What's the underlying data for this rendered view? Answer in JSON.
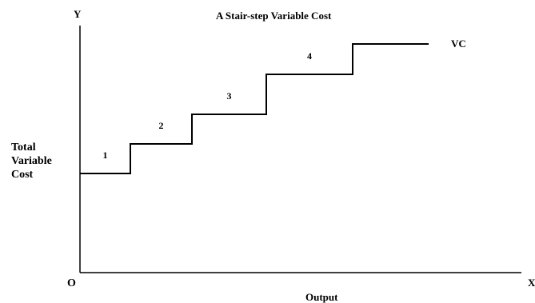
{
  "chart_data": {
    "type": "line",
    "title": "A Stair-step Variable Cost",
    "xlabel": "Output",
    "ylabel": [
      "Total",
      "Variable",
      "Cost"
    ],
    "x_axis_symbol": "X",
    "y_axis_symbol": "Y",
    "origin_label": "O",
    "series": [
      {
        "name": "VC",
        "steps": [
          {
            "label": "1",
            "x_start": 0,
            "x_end": 1,
            "y": 1
          },
          {
            "label": "2",
            "x_start": 1,
            "x_end": 2,
            "y": 2
          },
          {
            "label": "3",
            "x_start": 2,
            "x_end": 3,
            "y": 3
          },
          {
            "label": "4",
            "x_start": 3,
            "x_end": 4,
            "y": 4
          },
          {
            "label": "",
            "x_start": 4,
            "x_end": 5,
            "y": 5
          }
        ]
      }
    ],
    "grid": false,
    "legend": "none"
  }
}
